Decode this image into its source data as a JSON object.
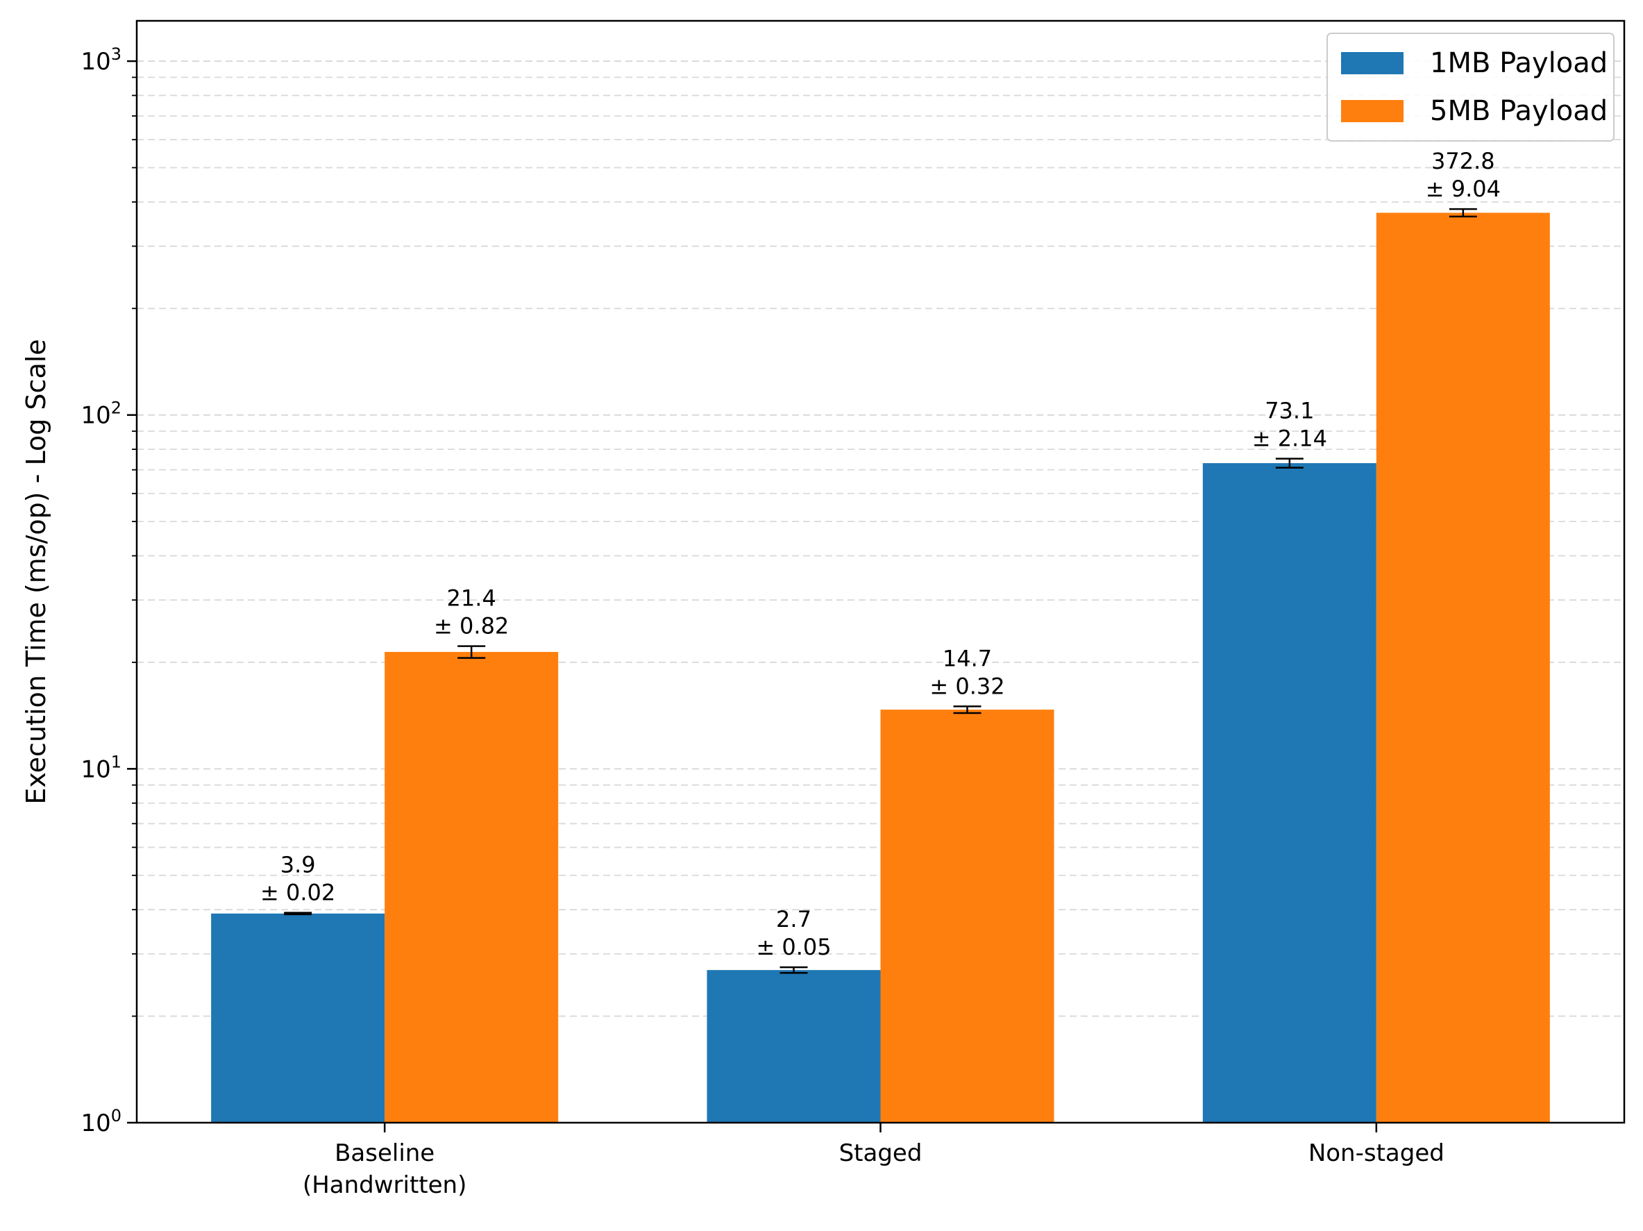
{
  "chart_data": {
    "type": "bar",
    "title": "",
    "xlabel": "",
    "ylabel": "Execution Time (ms/op) - Log Scale",
    "yscale": "log",
    "ylim": [
      1,
      1300
    ],
    "y_ticks": [
      {
        "value": 1,
        "base": "10",
        "exp": "0"
      },
      {
        "value": 10,
        "base": "10",
        "exp": "1"
      },
      {
        "value": 100,
        "base": "10",
        "exp": "2"
      },
      {
        "value": 1000,
        "base": "10",
        "exp": "3"
      }
    ],
    "grid": "y-major-and-minor-dashed",
    "legend_position": "top-right",
    "categories": [
      [
        "Baseline",
        "(Handwritten)"
      ],
      [
        "Staged"
      ],
      [
        "Non-staged"
      ]
    ],
    "series": [
      {
        "name": "1MB Payload",
        "color": "#1f77b4",
        "values": [
          3.9,
          2.7,
          73.1
        ],
        "errors": [
          0.02,
          0.05,
          2.14
        ],
        "value_labels": [
          "3.9",
          "2.7",
          "73.1"
        ],
        "error_labels": [
          "± 0.02",
          "± 0.05",
          "± 2.14"
        ]
      },
      {
        "name": "5MB Payload",
        "color": "#ff7f0e",
        "values": [
          21.4,
          14.7,
          372.8
        ],
        "errors": [
          0.82,
          0.32,
          9.04
        ],
        "value_labels": [
          "21.4",
          "14.7",
          "372.8"
        ],
        "error_labels": [
          "± 0.82",
          "± 0.32",
          "± 9.04"
        ]
      }
    ]
  }
}
